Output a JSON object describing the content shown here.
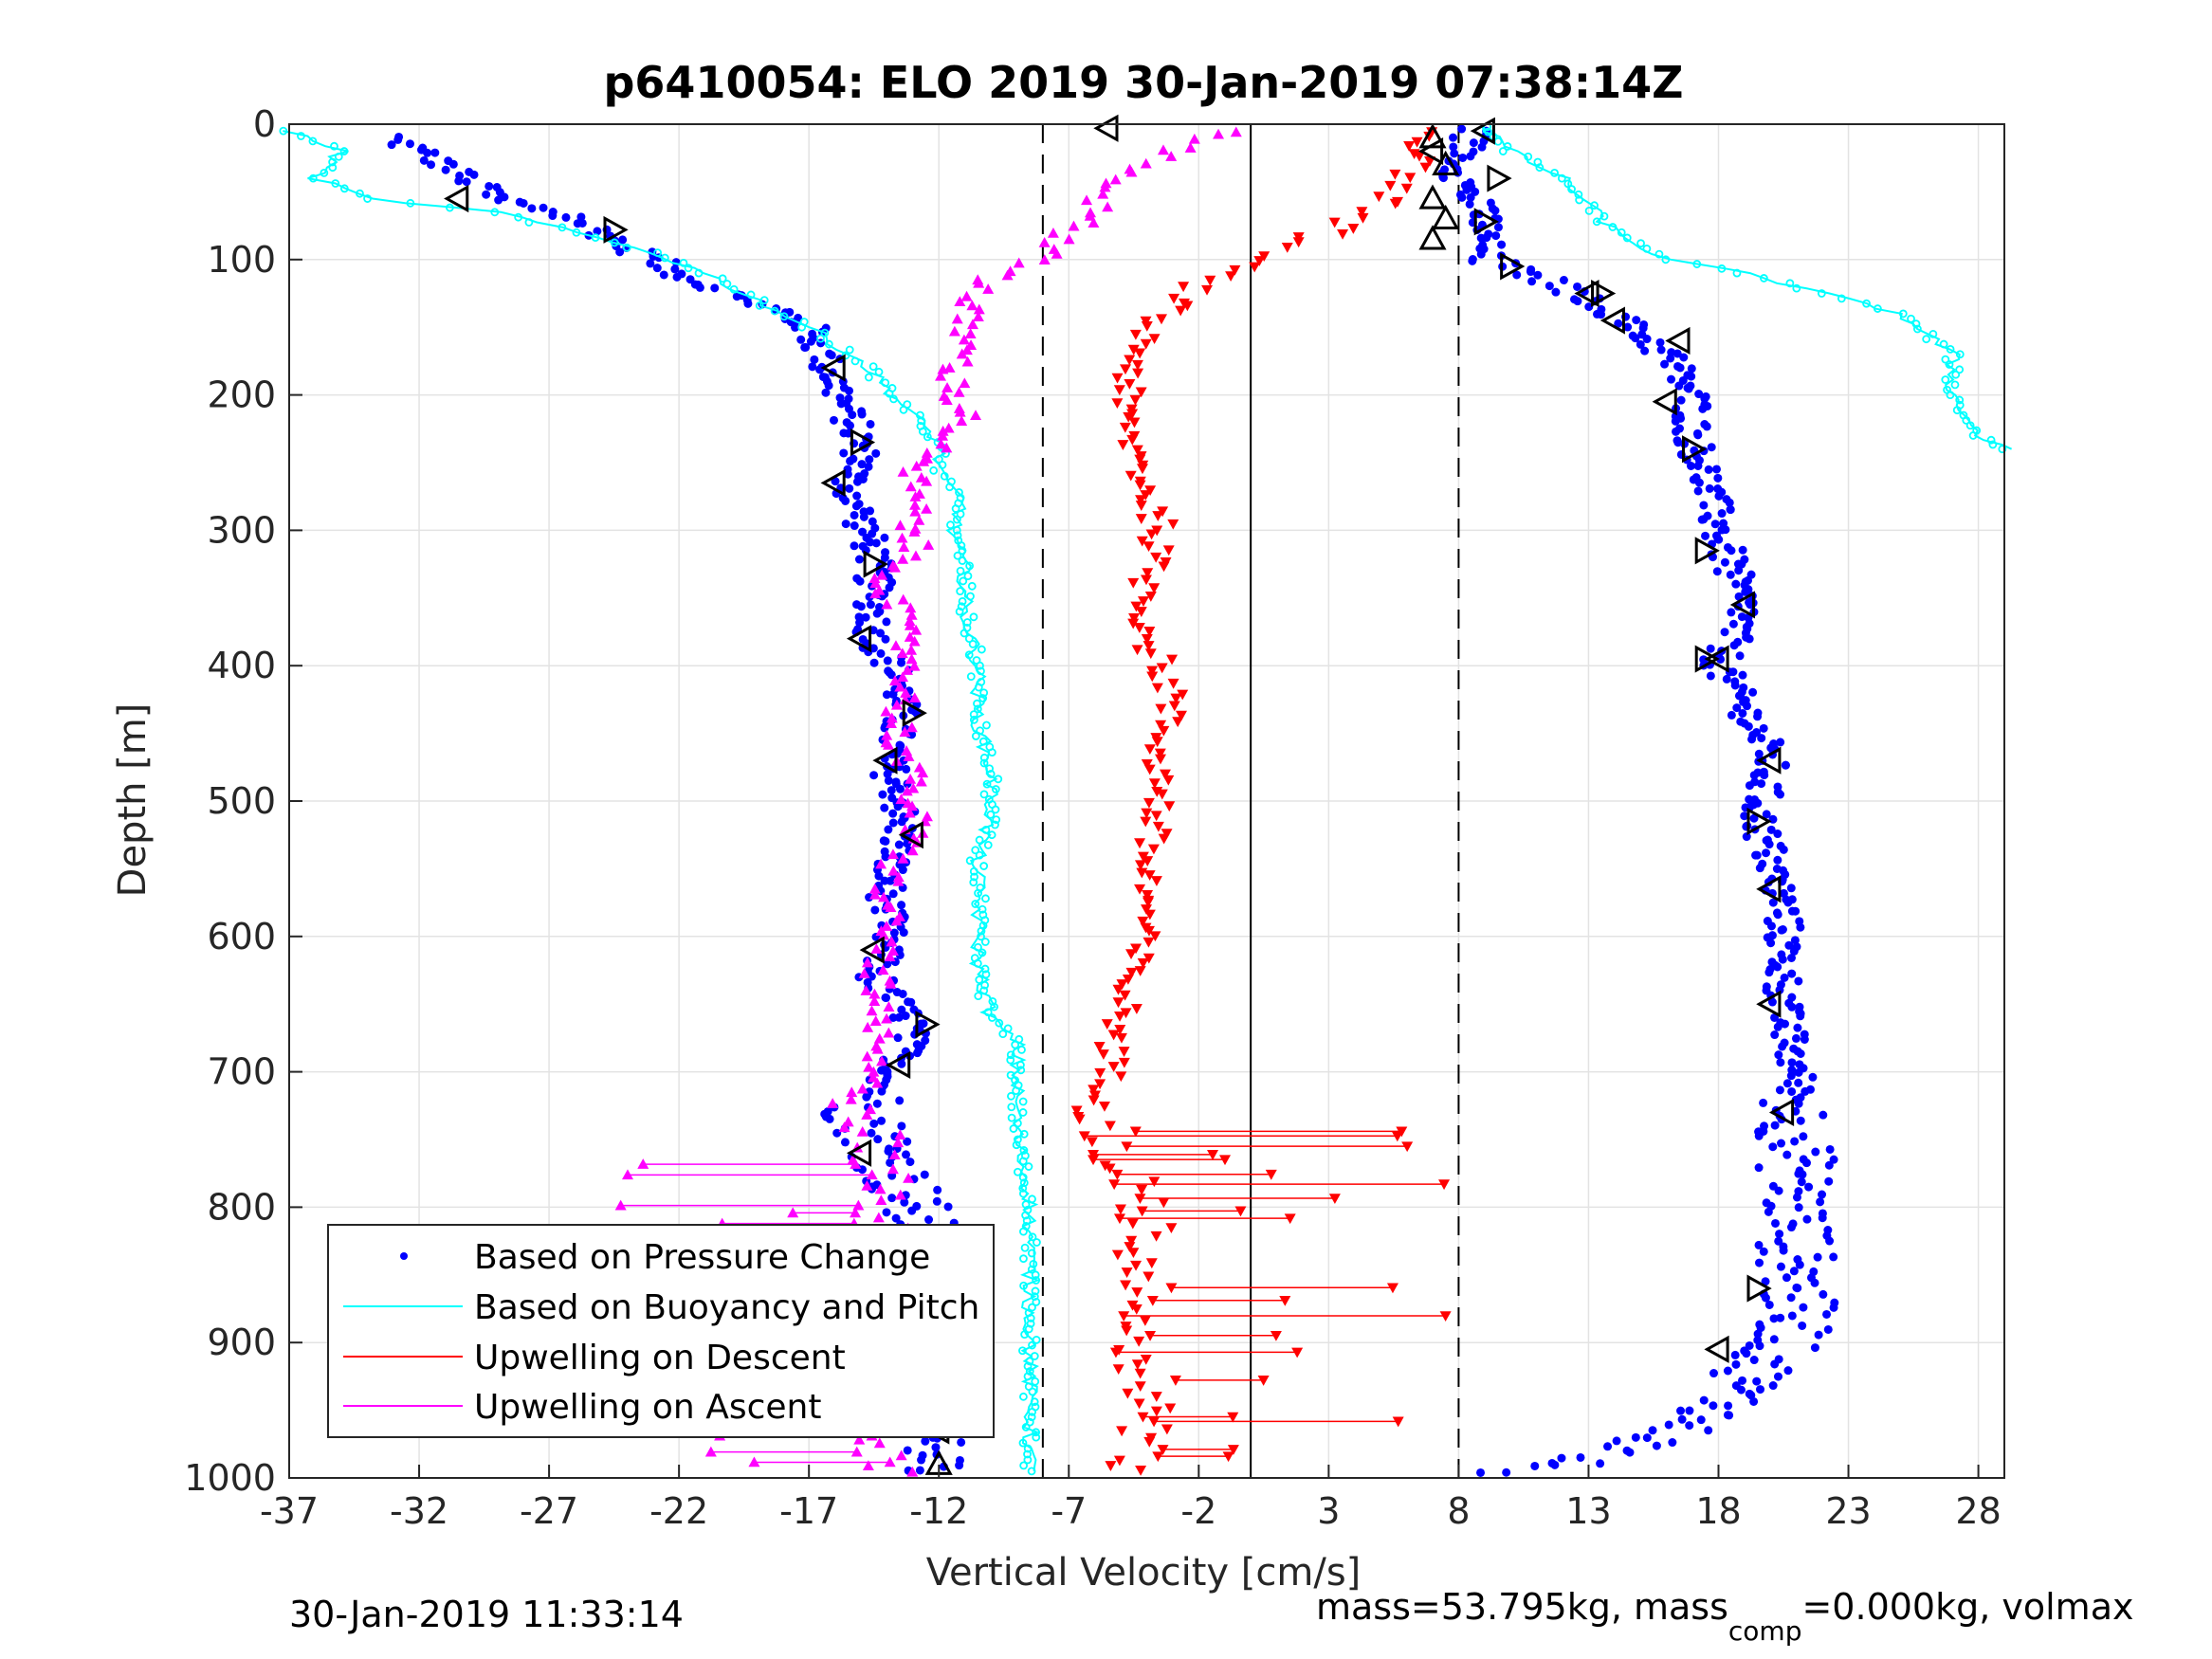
{
  "chart_data": {
    "type": "scatter",
    "title": "p6410054: ELO 2019 30-Jan-2019 07:38:14Z",
    "xlabel": "Vertical Velocity [cm/s]",
    "ylabel": "Depth [m]",
    "xlim": [
      -37,
      29
    ],
    "ylim": [
      0,
      1000
    ],
    "y_reversed": true,
    "xticks": [
      -37,
      -32,
      -27,
      -22,
      -17,
      -12,
      -7,
      -2,
      3,
      8,
      13,
      18,
      23,
      28
    ],
    "yticks": [
      0,
      100,
      200,
      300,
      400,
      500,
      600,
      700,
      800,
      900,
      1000
    ],
    "grid": true,
    "legend_position": "bottom-left",
    "reference_lines": [
      {
        "x": -8,
        "style": "dashed"
      },
      {
        "x": 0,
        "style": "solid"
      },
      {
        "x": 8,
        "style": "dashed"
      }
    ],
    "series": [
      {
        "name": "Based on Pressure Change",
        "color": "#0000ff",
        "marker": "dot",
        "profiles": [
          {
            "points": [
              [
                -33,
                10
              ],
              [
                -31,
                30
              ],
              [
                -29,
                55
              ],
              [
                -26,
                70
              ],
              [
                -24,
                90
              ],
              [
                -22,
                110
              ],
              [
                -20,
                125
              ],
              [
                -18,
                140
              ],
              [
                -17,
                150
              ],
              [
                -16.5,
                170
              ],
              [
                -16,
                190
              ],
              [
                -15.5,
                215
              ],
              [
                -15,
                235
              ],
              [
                -15,
                250
              ],
              [
                -15.5,
                265
              ],
              [
                -15,
                290
              ],
              [
                -14.5,
                320
              ],
              [
                -14.5,
                350
              ],
              [
                -14.5,
                380
              ],
              [
                -13.5,
                410
              ],
              [
                -13.5,
                440
              ],
              [
                -14,
                470
              ],
              [
                -13.5,
                500
              ],
              [
                -13.5,
                525
              ],
              [
                -14,
                555
              ],
              [
                -14,
                580
              ],
              [
                -14,
                605
              ],
              [
                -14.5,
                630
              ],
              [
                -13,
                665
              ],
              [
                -13.5,
                695
              ],
              [
                -15,
                730
              ],
              [
                -14,
                760
              ],
              [
                -13,
                800
              ],
              [
                -12.5,
                840
              ],
              [
                -12.5,
                880
              ],
              [
                -12.5,
                910
              ],
              [
                -12,
                940
              ],
              [
                -12.5,
                970
              ],
              [
                -12,
                995
              ]
            ]
          },
          {
            "points": [
              [
                8.5,
                5
              ],
              [
                8,
                40
              ],
              [
                9,
                70
              ],
              [
                9,
                100
              ],
              [
                12,
                120
              ],
              [
                14,
                140
              ],
              [
                16,
                170
              ],
              [
                17,
                200
              ],
              [
                17,
                230
              ],
              [
                17.5,
                260
              ],
              [
                18,
                300
              ],
              [
                18.5,
                330
              ],
              [
                19,
                360
              ],
              [
                18,
                400
              ],
              [
                19,
                430
              ],
              [
                20,
                470
              ],
              [
                19.5,
                510
              ],
              [
                20,
                545
              ],
              [
                20.5,
                580
              ],
              [
                20.5,
                620
              ],
              [
                20.5,
                660
              ],
              [
                21,
                700
              ],
              [
                21,
                740
              ],
              [
                21,
                780
              ],
              [
                21,
                820
              ],
              [
                21,
                860
              ],
              [
                21,
                890
              ],
              [
                19.5,
                920
              ],
              [
                18,
                950
              ],
              [
                16,
                970
              ],
              [
                13,
                985
              ],
              [
                10,
                995
              ]
            ]
          }
        ]
      },
      {
        "name": "Based on Buoyancy and Pitch",
        "color": "#00ffff",
        "marker": "open-circle-line",
        "profiles": [
          {
            "points": [
              [
                -37,
                5
              ],
              [
                -35,
                20
              ],
              [
                -36,
                40
              ],
              [
                -34,
                55
              ],
              [
                -29,
                65
              ],
              [
                -26,
                80
              ],
              [
                -23,
                95
              ],
              [
                -21,
                110
              ],
              [
                -19,
                130
              ],
              [
                -17,
                150
              ],
              [
                -15,
                175
              ],
              [
                -14,
                195
              ],
              [
                -13,
                215
              ],
              [
                -12,
                235
              ],
              [
                -12,
                260
              ],
              [
                -11,
                280
              ],
              [
                -11.5,
                300
              ],
              [
                -11,
                330
              ],
              [
                -11,
                360
              ],
              [
                -10.5,
                400
              ],
              [
                -10.5,
                440
              ],
              [
                -10,
                480
              ],
              [
                -10,
                510
              ],
              [
                -10.5,
                540
              ],
              [
                -10.5,
                580
              ],
              [
                -10.5,
                620
              ],
              [
                -10,
                660
              ],
              [
                -9,
                680
              ],
              [
                -9,
                710
              ],
              [
                -9,
                750
              ],
              [
                -8.5,
                790
              ],
              [
                -8.5,
                830
              ],
              [
                -8.5,
                870
              ],
              [
                -8.5,
                910
              ],
              [
                -8.5,
                940
              ],
              [
                -8.5,
                970
              ],
              [
                -8.5,
                995
              ]
            ]
          },
          {
            "points": [
              [
                9,
                2
              ],
              [
                10,
                20
              ],
              [
                12,
                40
              ],
              [
                13,
                60
              ],
              [
                14,
                80
              ],
              [
                16,
                100
              ],
              [
                19,
                110
              ],
              [
                22,
                125
              ],
              [
                25,
                140
              ],
              [
                27,
                170
              ],
              [
                27,
                200
              ],
              [
                28,
                230
              ],
              [
                29,
                240
              ]
            ]
          }
        ]
      },
      {
        "name": "Upwelling on Descent",
        "color": "#ff0000",
        "marker": "triangle-down",
        "profiles": [
          {
            "points": [
              [
                7,
                5
              ],
              [
                6,
                40
              ],
              [
                5,
                60
              ],
              [
                3,
                80
              ],
              [
                0,
                100
              ],
              [
                -2,
                120
              ],
              [
                -4,
                150
              ],
              [
                -4.5,
                180
              ],
              [
                -5,
                210
              ],
              [
                -4.5,
                240
              ],
              [
                -4,
                270
              ],
              [
                -3.5,
                300
              ],
              [
                -4,
                340
              ],
              [
                -4,
                380
              ],
              [
                -3,
                420
              ],
              [
                -3.5,
                460
              ],
              [
                -3.5,
                500
              ],
              [
                -4,
                540
              ],
              [
                -4,
                580
              ],
              [
                -4.5,
                620
              ],
              [
                -5,
                660
              ],
              [
                -5.5,
                700
              ],
              [
                -5.5,
                740
              ],
              [
                -4.5,
                780
              ],
              [
                -4,
                820
              ],
              [
                -4,
                860
              ],
              [
                -4,
                900
              ],
              [
                -4,
                940
              ],
              [
                -4,
                970
              ],
              [
                -5,
                995
              ]
            ]
          }
        ]
      },
      {
        "name": "Upwelling on Ascent",
        "color": "#ff00ff",
        "marker": "triangle-up",
        "profiles": [
          {
            "points": [
              [
                -1,
                5
              ],
              [
                -3,
                20
              ],
              [
                -5,
                40
              ],
              [
                -6,
                60
              ],
              [
                -7,
                80
              ],
              [
                -8,
                100
              ],
              [
                -10,
                115
              ],
              [
                -11,
                130
              ],
              [
                -11,
                160
              ],
              [
                -11.5,
                190
              ],
              [
                -11,
                220
              ],
              [
                -13,
                250
              ],
              [
                -13,
                280
              ],
              [
                -13,
                310
              ],
              [
                -14,
                340
              ],
              [
                -13.5,
                370
              ],
              [
                -13,
                400
              ],
              [
                -13.5,
                430
              ],
              [
                -13.5,
                460
              ],
              [
                -13,
                490
              ],
              [
                -13,
                520
              ],
              [
                -14,
                560
              ],
              [
                -14,
                600
              ],
              [
                -14.5,
                640
              ],
              [
                -14.5,
                680
              ],
              [
                -15,
                720
              ],
              [
                -14.5,
                760
              ],
              [
                -14,
                800
              ],
              [
                -14.5,
                840
              ],
              [
                -14,
                880
              ],
              [
                -14,
                920
              ],
              [
                -14.5,
                960
              ],
              [
                -14,
                995
              ]
            ]
          }
        ]
      }
    ],
    "markers_black": [
      {
        "shape": "left",
        "points": [
          [
            -5.5,
            3
          ],
          [
            -30.5,
            55
          ],
          [
            -16,
            180
          ],
          [
            -16,
            265
          ],
          [
            -15,
            380
          ],
          [
            -14,
            470
          ],
          [
            -13,
            525
          ],
          [
            -14.5,
            610
          ],
          [
            -13.5,
            695
          ],
          [
            -15,
            760
          ],
          [
            -12.5,
            910
          ],
          [
            -12,
            965
          ],
          [
            9,
            5
          ],
          [
            7,
            20
          ],
          [
            16.5,
            160
          ],
          [
            16,
            205
          ],
          [
            19,
            355
          ],
          [
            18,
            395
          ],
          [
            20,
            470
          ],
          [
            20,
            565
          ],
          [
            20,
            650
          ],
          [
            20.5,
            730
          ],
          [
            18,
            905
          ],
          [
            13,
            125
          ],
          [
            14,
            145
          ]
        ]
      },
      {
        "shape": "right",
        "points": [
          [
            -24.5,
            78
          ],
          [
            -15,
            235
          ],
          [
            -14.5,
            325
          ],
          [
            -13,
            435
          ],
          [
            -12.5,
            665
          ],
          [
            -12.5,
            935
          ],
          [
            9.5,
            40
          ],
          [
            9,
            72
          ],
          [
            10,
            105
          ],
          [
            13.5,
            125
          ],
          [
            17,
            240
          ],
          [
            17.5,
            315
          ],
          [
            17.5,
            395
          ],
          [
            19.5,
            515
          ],
          [
            19.5,
            860
          ]
        ]
      },
      {
        "shape": "up",
        "points": [
          [
            7,
            10
          ],
          [
            7.5,
            30
          ],
          [
            7,
            55
          ],
          [
            7.5,
            70
          ],
          [
            7,
            85
          ],
          [
            -12,
            990
          ]
        ]
      }
    ]
  },
  "legend": {
    "items": [
      {
        "label": "Based on Pressure Change"
      },
      {
        "label": "Based on Buoyancy and Pitch"
      },
      {
        "label": "Upwelling on Descent"
      },
      {
        "label": "Upwelling on Ascent"
      }
    ]
  },
  "footer": {
    "left": "30-Jan-2019 11:33:14",
    "right_prefix": "mass=53.795kg, mass",
    "right_sub": "comp",
    "right_suffix": "=0.000kg, volmax"
  }
}
